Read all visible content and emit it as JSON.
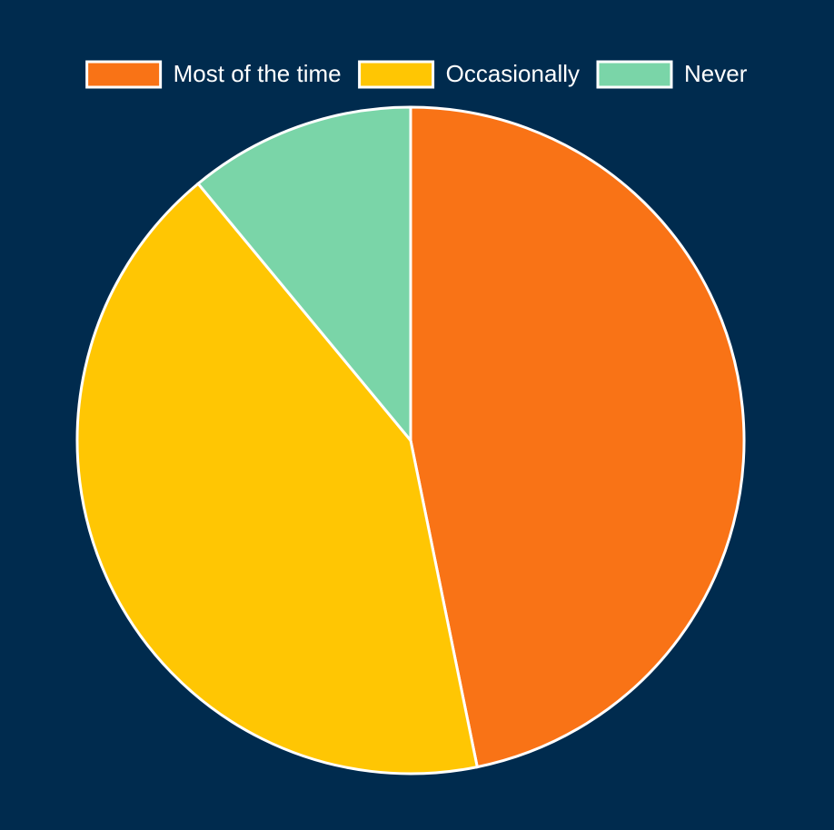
{
  "chart_data": {
    "type": "pie",
    "categories": [
      "Most of the time",
      "Occasionally",
      "Never"
    ],
    "values": [
      46.8,
      42.2,
      11
    ],
    "colors": [
      "#f97316",
      "#ffc603",
      "#7ad5a8"
    ],
    "legend": "top"
  }
}
